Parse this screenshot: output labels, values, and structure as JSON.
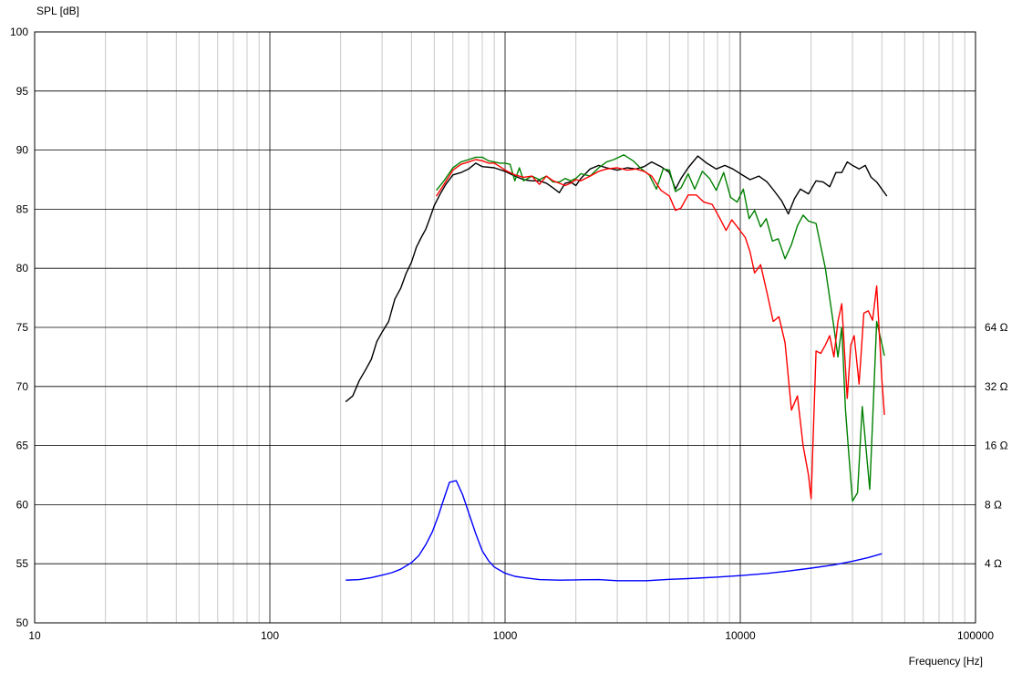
{
  "chart_data": {
    "type": "line",
    "ylabel": "SPL [dB]",
    "xlabel": "Frequency [Hz]",
    "x_scale": "log",
    "xlim": [
      10,
      100000
    ],
    "ylim": [
      50,
      100
    ],
    "x_ticks": [
      10,
      100,
      1000,
      10000,
      100000
    ],
    "x_tick_labels": [
      "10",
      "100",
      "1000",
      "10000",
      "100000"
    ],
    "y_ticks": [
      50,
      55,
      60,
      65,
      70,
      75,
      80,
      85,
      90,
      95,
      100
    ],
    "y_tick_labels": [
      "50",
      "55",
      "60",
      "65",
      "70",
      "75",
      "80",
      "85",
      "90",
      "95",
      "100"
    ],
    "y2_scale": "log",
    "y2_ticks": [
      4,
      8,
      16,
      32,
      64
    ],
    "y2_tick_labels": [
      "4 Ω",
      "8 Ω",
      "16 Ω",
      "32 Ω",
      "64 Ω"
    ],
    "y2_base": {
      "value": 4,
      "spl": 55,
      "db_per_octave": 5
    },
    "grid": true,
    "series": [
      {
        "color": "#000000",
        "axis": "left",
        "points": [
          [
            210,
            68.7
          ],
          [
            225,
            69.2
          ],
          [
            240,
            70.5
          ],
          [
            255,
            71.4
          ],
          [
            270,
            72.3
          ],
          [
            285,
            73.8
          ],
          [
            300,
            74.6
          ],
          [
            320,
            75.5
          ],
          [
            340,
            77.4
          ],
          [
            360,
            78.3
          ],
          [
            380,
            79.6
          ],
          [
            400,
            80.5
          ],
          [
            420,
            81.8
          ],
          [
            440,
            82.6
          ],
          [
            460,
            83.3
          ],
          [
            480,
            84.3
          ],
          [
            500,
            85.3
          ],
          [
            530,
            86.3
          ],
          [
            560,
            87.1
          ],
          [
            600,
            87.9
          ],
          [
            650,
            88.1
          ],
          [
            700,
            88.4
          ],
          [
            750,
            88.9
          ],
          [
            800,
            88.6
          ],
          [
            900,
            88.5
          ],
          [
            1000,
            88.2
          ],
          [
            1100,
            87.8
          ],
          [
            1200,
            87.5
          ],
          [
            1300,
            87.4
          ],
          [
            1400,
            87.4
          ],
          [
            1500,
            87.2
          ],
          [
            1600,
            86.8
          ],
          [
            1700,
            86.4
          ],
          [
            1800,
            87.2
          ],
          [
            1900,
            87.3
          ],
          [
            2000,
            87.0
          ],
          [
            2100,
            87.6
          ],
          [
            2300,
            88.4
          ],
          [
            2500,
            88.7
          ],
          [
            2700,
            88.5
          ],
          [
            3000,
            88.3
          ],
          [
            3300,
            88.5
          ],
          [
            3600,
            88.4
          ],
          [
            3900,
            88.6
          ],
          [
            4200,
            89.0
          ],
          [
            4600,
            88.6
          ],
          [
            5000,
            88.1
          ],
          [
            5300,
            86.7
          ],
          [
            5600,
            87.6
          ],
          [
            6000,
            88.5
          ],
          [
            6600,
            89.5
          ],
          [
            7200,
            88.9
          ],
          [
            7900,
            88.4
          ],
          [
            8600,
            88.7
          ],
          [
            9300,
            88.4
          ],
          [
            10000,
            88.0
          ],
          [
            11000,
            87.5
          ],
          [
            12000,
            87.8
          ],
          [
            13000,
            87.3
          ],
          [
            14000,
            86.5
          ],
          [
            15000,
            85.7
          ],
          [
            16000,
            84.6
          ],
          [
            17000,
            85.9
          ],
          [
            18000,
            86.7
          ],
          [
            19500,
            86.3
          ],
          [
            21000,
            87.4
          ],
          [
            22500,
            87.3
          ],
          [
            24000,
            86.9
          ],
          [
            25500,
            88.1
          ],
          [
            27000,
            88.1
          ],
          [
            28500,
            89.0
          ],
          [
            30000,
            88.7
          ],
          [
            32000,
            88.4
          ],
          [
            34000,
            88.7
          ],
          [
            36000,
            87.7
          ],
          [
            38000,
            87.3
          ],
          [
            40000,
            86.7
          ],
          [
            42000,
            86.1
          ]
        ]
      },
      {
        "color": "#008000",
        "axis": "left",
        "points": [
          [
            510,
            86.6
          ],
          [
            550,
            87.4
          ],
          [
            600,
            88.5
          ],
          [
            650,
            89.0
          ],
          [
            700,
            89.2
          ],
          [
            750,
            89.4
          ],
          [
            800,
            89.4
          ],
          [
            850,
            89.1
          ],
          [
            900,
            89.0
          ],
          [
            950,
            88.9
          ],
          [
            1000,
            88.9
          ],
          [
            1050,
            88.8
          ],
          [
            1100,
            87.4
          ],
          [
            1150,
            88.5
          ],
          [
            1200,
            87.4
          ],
          [
            1300,
            87.8
          ],
          [
            1400,
            87.5
          ],
          [
            1500,
            87.8
          ],
          [
            1600,
            87.3
          ],
          [
            1700,
            87.3
          ],
          [
            1800,
            87.6
          ],
          [
            1900,
            87.4
          ],
          [
            2000,
            87.6
          ],
          [
            2100,
            88.0
          ],
          [
            2300,
            87.8
          ],
          [
            2500,
            88.5
          ],
          [
            2700,
            89.0
          ],
          [
            2900,
            89.2
          ],
          [
            3200,
            89.6
          ],
          [
            3500,
            89.1
          ],
          [
            3800,
            88.4
          ],
          [
            4100,
            87.9
          ],
          [
            4400,
            86.7
          ],
          [
            4700,
            88.4
          ],
          [
            5000,
            88.3
          ],
          [
            5300,
            86.5
          ],
          [
            5600,
            86.8
          ],
          [
            6000,
            88.0
          ],
          [
            6400,
            86.7
          ],
          [
            6900,
            88.2
          ],
          [
            7400,
            87.6
          ],
          [
            7900,
            86.6
          ],
          [
            8500,
            88.1
          ],
          [
            9100,
            86.0
          ],
          [
            9700,
            85.6
          ],
          [
            10300,
            86.7
          ],
          [
            10900,
            84.2
          ],
          [
            11500,
            84.9
          ],
          [
            12200,
            83.5
          ],
          [
            12900,
            84.2
          ],
          [
            13700,
            82.3
          ],
          [
            14500,
            82.5
          ],
          [
            15500,
            80.8
          ],
          [
            16500,
            82.0
          ],
          [
            17500,
            83.6
          ],
          [
            18500,
            84.5
          ],
          [
            19500,
            84.0
          ],
          [
            21000,
            83.8
          ],
          [
            23000,
            80.0
          ],
          [
            25000,
            75.0
          ],
          [
            26000,
            72.5
          ],
          [
            27000,
            75.0
          ],
          [
            28000,
            68.0
          ],
          [
            29000,
            64.0
          ],
          [
            30000,
            60.3
          ],
          [
            31500,
            61.0
          ],
          [
            33000,
            68.3
          ],
          [
            34500,
            64.0
          ],
          [
            35500,
            61.3
          ],
          [
            36500,
            67.0
          ],
          [
            38000,
            75.5
          ],
          [
            40000,
            73.6
          ],
          [
            41000,
            72.6
          ]
        ]
      },
      {
        "color": "#ff0000",
        "axis": "left",
        "points": [
          [
            510,
            86.1
          ],
          [
            550,
            87.1
          ],
          [
            600,
            88.3
          ],
          [
            650,
            88.8
          ],
          [
            700,
            89.0
          ],
          [
            750,
            89.2
          ],
          [
            800,
            89.1
          ],
          [
            850,
            88.9
          ],
          [
            900,
            88.9
          ],
          [
            950,
            88.6
          ],
          [
            1000,
            88.3
          ],
          [
            1100,
            87.9
          ],
          [
            1200,
            87.7
          ],
          [
            1300,
            87.8
          ],
          [
            1400,
            87.1
          ],
          [
            1500,
            87.8
          ],
          [
            1600,
            87.4
          ],
          [
            1700,
            87.2
          ],
          [
            1800,
            87.0
          ],
          [
            1900,
            87.2
          ],
          [
            2000,
            87.5
          ],
          [
            2100,
            87.4
          ],
          [
            2300,
            87.8
          ],
          [
            2500,
            88.2
          ],
          [
            2700,
            88.4
          ],
          [
            3000,
            88.5
          ],
          [
            3300,
            88.3
          ],
          [
            3600,
            88.4
          ],
          [
            3900,
            88.2
          ],
          [
            4200,
            87.8
          ],
          [
            4600,
            86.6
          ],
          [
            5000,
            86.1
          ],
          [
            5300,
            84.9
          ],
          [
            5600,
            85.1
          ],
          [
            6000,
            86.2
          ],
          [
            6500,
            86.2
          ],
          [
            7000,
            85.6
          ],
          [
            7600,
            85.4
          ],
          [
            8200,
            84.2
          ],
          [
            8700,
            83.2
          ],
          [
            9200,
            84.1
          ],
          [
            9800,
            83.4
          ],
          [
            10500,
            82.6
          ],
          [
            11000,
            81.4
          ],
          [
            11500,
            79.6
          ],
          [
            12200,
            80.3
          ],
          [
            13000,
            77.9
          ],
          [
            13800,
            75.5
          ],
          [
            14600,
            75.9
          ],
          [
            15500,
            73.7
          ],
          [
            16500,
            68.0
          ],
          [
            17500,
            69.2
          ],
          [
            18500,
            65.0
          ],
          [
            19500,
            62.5
          ],
          [
            20000,
            60.5
          ],
          [
            21000,
            73.0
          ],
          [
            22000,
            72.8
          ],
          [
            23000,
            73.5
          ],
          [
            24000,
            74.3
          ],
          [
            25000,
            72.5
          ],
          [
            26000,
            75.5
          ],
          [
            27000,
            77.0
          ],
          [
            28500,
            69.0
          ],
          [
            29500,
            73.5
          ],
          [
            30500,
            74.3
          ],
          [
            32000,
            70.2
          ],
          [
            33500,
            76.2
          ],
          [
            35000,
            76.4
          ],
          [
            36500,
            75.6
          ],
          [
            38000,
            78.5
          ],
          [
            40000,
            70.6
          ],
          [
            41000,
            67.6
          ]
        ]
      },
      {
        "color": "#0000ff",
        "axis": "right",
        "points": [
          [
            210,
            3.3
          ],
          [
            240,
            3.32
          ],
          [
            270,
            3.4
          ],
          [
            300,
            3.5
          ],
          [
            330,
            3.6
          ],
          [
            360,
            3.75
          ],
          [
            400,
            4.05
          ],
          [
            430,
            4.4
          ],
          [
            460,
            5.0
          ],
          [
            490,
            5.8
          ],
          [
            520,
            7.0
          ],
          [
            550,
            8.6
          ],
          [
            580,
            10.4
          ],
          [
            620,
            10.6
          ],
          [
            660,
            9.0
          ],
          [
            700,
            7.3
          ],
          [
            750,
            5.7
          ],
          [
            800,
            4.65
          ],
          [
            850,
            4.15
          ],
          [
            900,
            3.85
          ],
          [
            1000,
            3.58
          ],
          [
            1100,
            3.45
          ],
          [
            1200,
            3.4
          ],
          [
            1400,
            3.32
          ],
          [
            1700,
            3.3
          ],
          [
            2000,
            3.31
          ],
          [
            2500,
            3.32
          ],
          [
            3000,
            3.28
          ],
          [
            4000,
            3.28
          ],
          [
            5000,
            3.33
          ],
          [
            6000,
            3.36
          ],
          [
            8000,
            3.42
          ],
          [
            10000,
            3.48
          ],
          [
            13000,
            3.57
          ],
          [
            16000,
            3.67
          ],
          [
            20000,
            3.8
          ],
          [
            25000,
            3.95
          ],
          [
            30000,
            4.12
          ],
          [
            35000,
            4.3
          ],
          [
            40000,
            4.5
          ]
        ]
      }
    ]
  }
}
